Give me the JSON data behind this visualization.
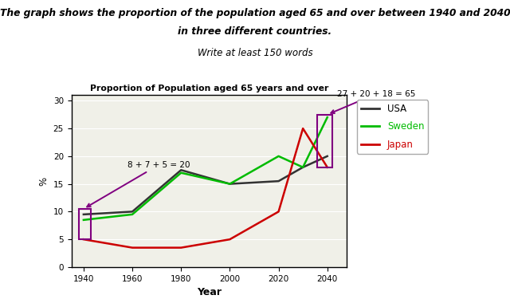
{
  "title": "Proportion of Population aged 65 years and over",
  "xlabel": "Year",
  "ylabel": "%",
  "header_line1": "The graph shows the proportion of the population aged 65 and over between 1940 and 2040",
  "header_line2": "in three different countries.",
  "subheader": "Write at least 150 words",
  "years": [
    1940,
    1960,
    1980,
    2000,
    2020,
    2030,
    2040
  ],
  "usa": [
    9.5,
    10.0,
    17.5,
    15.0,
    15.5,
    18.0,
    20.0
  ],
  "sweden": [
    8.5,
    9.5,
    17.0,
    15.0,
    20.0,
    18.0,
    27.0
  ],
  "japan": [
    5.0,
    3.5,
    3.5,
    5.0,
    10.0,
    25.0,
    18.0
  ],
  "usa_color": "#333333",
  "sweden_color": "#00bb00",
  "japan_color": "#cc0000",
  "annotation1_text": "8 + 7 + 5 = 20",
  "annotation2_text": "27 + 20 + 18 = 65",
  "ylim": [
    0,
    31
  ],
  "xlim": [
    1935,
    2048
  ],
  "background_color": "#ffffff",
  "plot_bg_color": "#f0f0e8"
}
